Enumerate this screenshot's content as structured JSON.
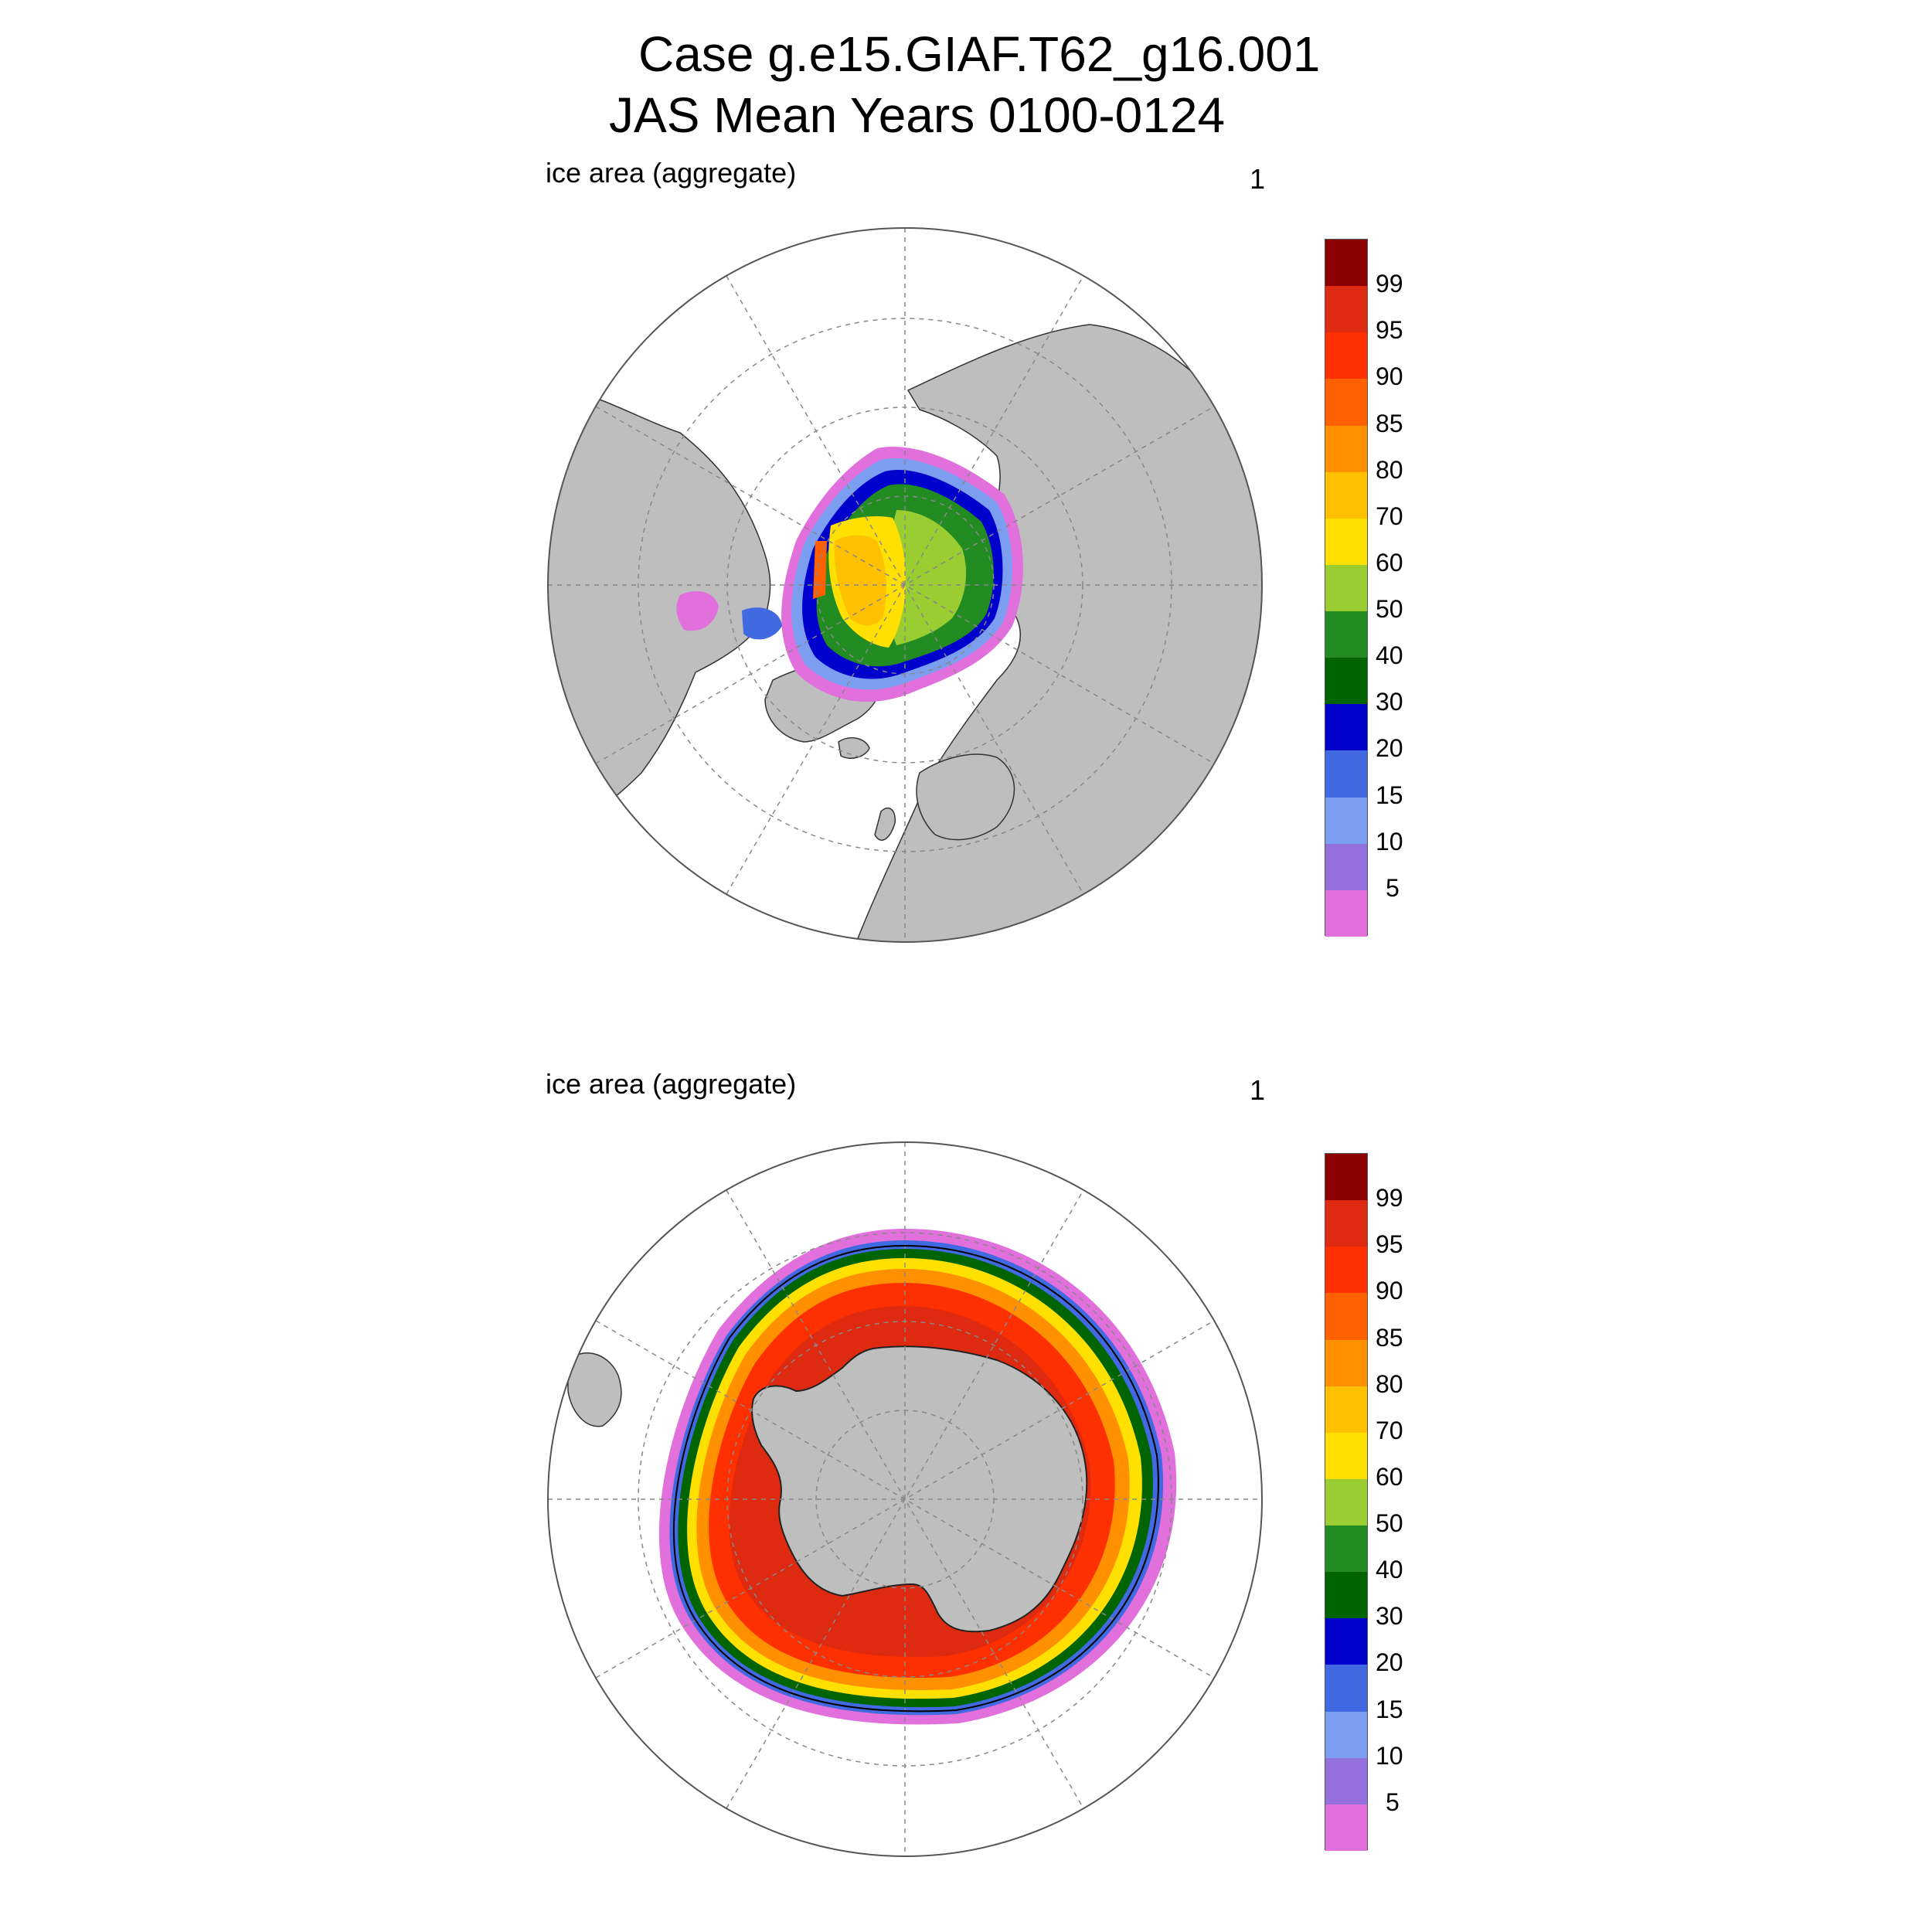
{
  "title": {
    "line1": "Case g.e15.GIAF.T62_g16.001",
    "line2": "JAS Mean    Years 0100-0124"
  },
  "panels": [
    {
      "id": "north",
      "left_label": "ice area  (aggregate)",
      "right_label": "1",
      "hemisphere": "Northern Hemisphere (Arctic)"
    },
    {
      "id": "south",
      "left_label": "ice area  (aggregate)",
      "right_label": "1",
      "hemisphere": "Southern Hemisphere (Antarctic)"
    }
  ],
  "colorbar": {
    "levels": [
      "5",
      "10",
      "15",
      "20",
      "30",
      "40",
      "50",
      "60",
      "70",
      "80",
      "85",
      "90",
      "95",
      "99"
    ],
    "colors": [
      "#e16fdc",
      "#9370db",
      "#7b9ef0",
      "#4169e1",
      "#0000cd",
      "#006400",
      "#228b22",
      "#9acd32",
      "#ffe000",
      "#ffc000",
      "#ff9000",
      "#ff6000",
      "#ff3000",
      "#dd2a10",
      "#8b0000"
    ]
  },
  "colors": {
    "land": "#bebebe",
    "ocean": "#ffffff",
    "grid": "#888888"
  }
}
